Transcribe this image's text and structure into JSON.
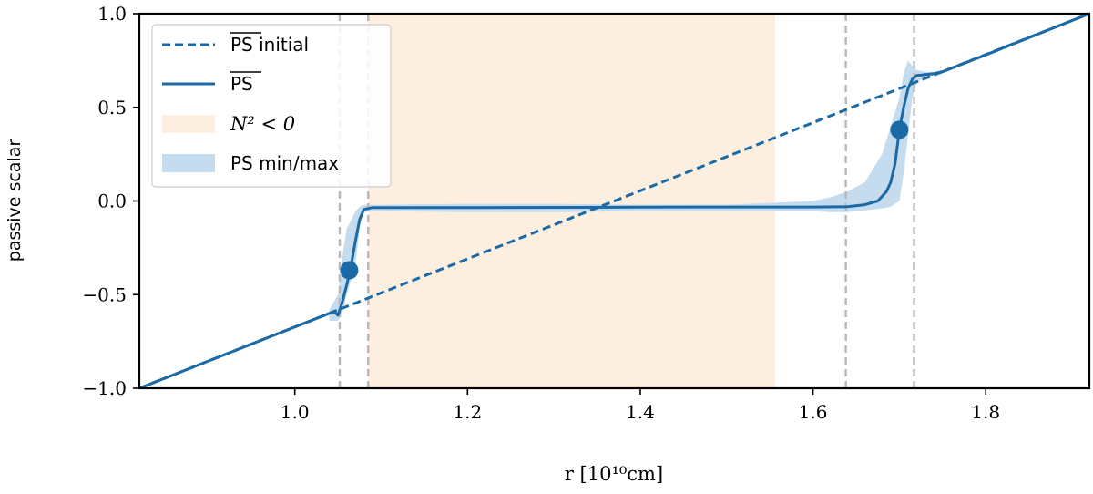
{
  "chart_data": {
    "type": "line",
    "xlabel": "r [10¹⁰cm]",
    "ylabel": "passive scalar",
    "xlim": [
      0.82,
      1.92
    ],
    "ylim": [
      -1.0,
      1.0
    ],
    "xticks": [
      1.0,
      1.2,
      1.4,
      1.6,
      1.8
    ],
    "xtick_labels": [
      "1.0",
      "1.2",
      "1.4",
      "1.6",
      "1.8"
    ],
    "yticks": [
      -1.0,
      -0.5,
      0.0,
      0.5,
      1.0
    ],
    "ytick_labels": [
      "−1.0",
      "−0.5",
      "0.0",
      "0.5",
      "1.0"
    ],
    "grid": false,
    "legend_position": "top-left",
    "colors": {
      "line": "#1b6aa5",
      "band": "#c5dcee",
      "shade": "#fdefe0",
      "vline": "#b8b8b8"
    },
    "legend": [
      {
        "label": "PS initial",
        "overline": "PS",
        "style": "dashed"
      },
      {
        "label": "PS",
        "overline": "PS",
        "style": "solid"
      },
      {
        "label": "N² < 0",
        "style": "shade"
      },
      {
        "label": "PS min/max",
        "style": "band"
      }
    ],
    "shaded_region": {
      "label": "N² < 0",
      "x_start": 1.085,
      "x_end": 1.556
    },
    "vertical_lines": [
      1.052,
      1.085,
      1.638,
      1.717
    ],
    "series": [
      {
        "name": "PS initial",
        "style": "dashed",
        "x": [
          0.82,
          1.92
        ],
        "y": [
          -1.0,
          1.0
        ]
      },
      {
        "name": "PS",
        "style": "solid",
        "x": [
          0.82,
          1.04,
          1.045,
          1.05,
          1.055,
          1.06,
          1.065,
          1.07,
          1.075,
          1.08,
          1.085,
          1.09,
          1.2,
          1.4,
          1.5,
          1.55,
          1.6,
          1.64,
          1.66,
          1.675,
          1.685,
          1.69,
          1.695,
          1.7,
          1.705,
          1.71,
          1.715,
          1.72,
          1.725,
          1.73,
          1.74,
          1.75,
          1.8,
          1.92
        ],
        "y": [
          -1.0,
          -0.6,
          -0.59,
          -0.61,
          -0.54,
          -0.45,
          -0.35,
          -0.22,
          -0.1,
          -0.045,
          -0.04,
          -0.035,
          -0.035,
          -0.033,
          -0.032,
          -0.032,
          -0.032,
          -0.03,
          -0.02,
          0.0,
          0.05,
          0.1,
          0.2,
          0.38,
          0.5,
          0.6,
          0.65,
          0.67,
          0.672,
          0.675,
          0.68,
          0.69,
          0.78,
          1.0
        ]
      }
    ],
    "minmax_band": {
      "label": "PS min/max",
      "x": [
        1.04,
        1.05,
        1.055,
        1.06,
        1.07,
        1.075,
        1.08,
        1.09,
        1.1,
        1.2,
        1.3,
        1.4,
        1.5,
        1.55,
        1.6,
        1.62,
        1.64,
        1.66,
        1.68,
        1.69,
        1.7,
        1.705,
        1.71,
        1.715,
        1.72,
        1.73,
        1.74,
        1.75
      ],
      "upper": [
        -0.58,
        -0.5,
        -0.3,
        -0.15,
        -0.06,
        -0.03,
        -0.02,
        -0.02,
        -0.02,
        -0.015,
        -0.015,
        -0.02,
        -0.02,
        -0.01,
        0.0,
        0.02,
        0.05,
        0.1,
        0.25,
        0.4,
        0.55,
        0.68,
        0.75,
        0.72,
        0.7,
        0.69,
        0.69,
        0.7
      ],
      "lower": [
        -0.64,
        -0.64,
        -0.6,
        -0.5,
        -0.35,
        -0.15,
        -0.06,
        -0.055,
        -0.055,
        -0.06,
        -0.06,
        -0.055,
        -0.055,
        -0.055,
        -0.055,
        -0.06,
        -0.06,
        -0.05,
        -0.04,
        -0.03,
        0.0,
        0.15,
        0.35,
        0.55,
        0.63,
        0.66,
        0.67,
        0.68
      ]
    },
    "markers": [
      {
        "x": 1.063,
        "y": -0.37
      },
      {
        "x": 1.7,
        "y": 0.38
      }
    ]
  }
}
